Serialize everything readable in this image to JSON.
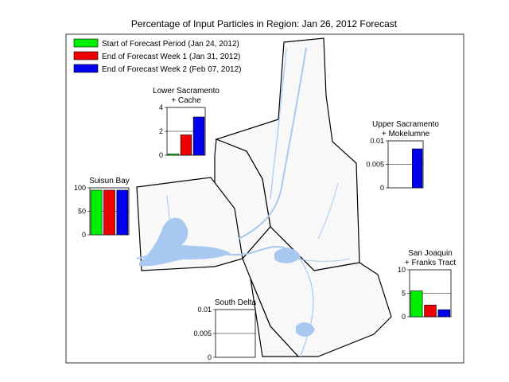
{
  "title": "Percentage of Input Particles in Region: Jan 26, 2012 Forecast",
  "colors": {
    "start": "#00ee00",
    "week1": "#ee0000",
    "week2": "#0000ee",
    "water": "#a8c8f0",
    "land": "#f8f8f8"
  },
  "legend": [
    {
      "label": "Start of Forecast Period (Jan 24, 2012)",
      "color_key": "start"
    },
    {
      "label": "End of Forecast Week 1 (Jan 31, 2012)",
      "color_key": "week1"
    },
    {
      "label": "End of Forecast Week 2 (Feb 07, 2012)",
      "color_key": "week2"
    }
  ],
  "chart_data": [
    {
      "type": "bar",
      "region": "lower_sacramento",
      "title_lines": [
        "Lower Sacramento",
        "+ Cache"
      ],
      "series": [
        "Start of Forecast Period (Jan 24, 2012)",
        "End of Forecast Week 1 (Jan 31, 2012)",
        "End of Forecast Week 2 (Feb 07, 2012)"
      ],
      "values": [
        0.1,
        1.7,
        3.2
      ],
      "ylim": [
        0,
        4
      ],
      "yticks": [
        "0",
        "2",
        "4"
      ],
      "tick_values": [
        0,
        2,
        4
      ],
      "grid_at": [
        2
      ]
    },
    {
      "type": "bar",
      "region": "upper_sacramento",
      "title_lines": [
        "Upper Sacramento",
        "+ Mokelumne"
      ],
      "series": [
        "Start of Forecast Period (Jan 24, 2012)",
        "End of Forecast Week 1 (Jan 31, 2012)",
        "End of Forecast Week 2 (Feb 07, 2012)"
      ],
      "values": [
        0,
        0,
        0.0083
      ],
      "ylim": [
        0,
        0.01
      ],
      "yticks": [
        "0",
        "0.005",
        "0.01"
      ],
      "tick_values": [
        0,
        0.005,
        0.01
      ],
      "grid_at": [
        0.005
      ]
    },
    {
      "type": "bar",
      "region": "suisun_bay",
      "title_lines": [
        "Suisun Bay"
      ],
      "series": [
        "Start of Forecast Period (Jan 24, 2012)",
        "End of Forecast Week 1 (Jan 31, 2012)",
        "End of Forecast Week 2 (Feb 07, 2012)"
      ],
      "values": [
        95,
        95,
        95
      ],
      "ylim": [
        0,
        100
      ],
      "yticks": [
        "0",
        "50",
        "100"
      ],
      "tick_values": [
        0,
        50,
        100
      ],
      "grid_at": [
        50
      ]
    },
    {
      "type": "bar",
      "region": "san_joaquin",
      "title_lines": [
        "San Joaquin",
        "+ Franks Tract"
      ],
      "series": [
        "Start of Forecast Period (Jan 24, 2012)",
        "End of Forecast Week 1 (Jan 31, 2012)",
        "End of Forecast Week 2 (Feb 07, 2012)"
      ],
      "values": [
        5.5,
        2.5,
        1.5
      ],
      "ylim": [
        0,
        10
      ],
      "yticks": [
        "0",
        "5",
        "10"
      ],
      "tick_values": [
        0,
        5,
        10
      ],
      "grid_at": [
        5
      ]
    },
    {
      "type": "bar",
      "region": "south_delta",
      "title_lines": [
        "South Delta"
      ],
      "series": [
        "Start of Forecast Period (Jan 24, 2012)",
        "End of Forecast Week 1 (Jan 31, 2012)",
        "End of Forecast Week 2 (Feb 07, 2012)"
      ],
      "values": [
        0,
        0,
        0
      ],
      "ylim": [
        0,
        0.01
      ],
      "yticks": [
        "0",
        "0.005",
        "0.01"
      ],
      "tick_values": [
        0,
        0.005,
        0.01
      ],
      "grid_at": [
        0.005
      ]
    }
  ]
}
